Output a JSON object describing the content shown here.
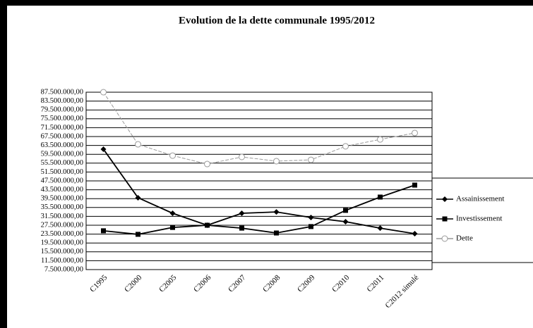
{
  "chart_data": {
    "type": "line",
    "title": "Evolution de la dette communale 1995/2012",
    "categories": [
      "C1995",
      "C2000",
      "C2005",
      "C2006",
      "C2007",
      "C2008",
      "C2009",
      "C2010",
      "C2011",
      "C2012 simulé"
    ],
    "series": [
      {
        "name": "Assainissement",
        "color": "#000000",
        "marker": "diamond",
        "values": [
          61800000,
          39900000,
          32900000,
          27500000,
          32900000,
          33500000,
          31000000,
          29100000,
          26200000,
          23700000
        ]
      },
      {
        "name": "Investissement",
        "color": "#000000",
        "marker": "square",
        "values": [
          25000000,
          23400000,
          26500000,
          27500000,
          26200000,
          24000000,
          26900000,
          34200000,
          40200000,
          45600000
        ]
      },
      {
        "name": "Dette",
        "color": "#9a9a9a",
        "marker": "circle",
        "values": [
          87500000,
          64000000,
          58900000,
          55100000,
          58300000,
          56400000,
          57000000,
          63100000,
          66200000,
          69100000
        ]
      }
    ],
    "ylim": [
      7500000,
      87500000
    ],
    "yticks": [
      {
        "value": 7500000,
        "label": "7.500.000,00"
      },
      {
        "value": 11500000,
        "label": "11.500.000,00"
      },
      {
        "value": 15500000,
        "label": "15.500.000,00"
      },
      {
        "value": 19500000,
        "label": "19.500.000,00"
      },
      {
        "value": 23500000,
        "label": "23.500.000,00"
      },
      {
        "value": 27500000,
        "label": "27.500.000,00"
      },
      {
        "value": 31500000,
        "label": "31.500.000,00"
      },
      {
        "value": 35500000,
        "label": "35.500.000,00"
      },
      {
        "value": 39500000,
        "label": "39.500.000,00"
      },
      {
        "value": 43500000,
        "label": "43.500.000,00"
      },
      {
        "value": 47500000,
        "label": "47.500.000,00"
      },
      {
        "value": 51500000,
        "label": "51.500.000,00"
      },
      {
        "value": 55500000,
        "label": "55.500.000,00"
      },
      {
        "value": 59500000,
        "label": "59.500.000,00"
      },
      {
        "value": 63500000,
        "label": "63.500.000,00"
      },
      {
        "value": 67500000,
        "label": "67.500.000,00"
      },
      {
        "value": 71500000,
        "label": "71.500.000,00"
      },
      {
        "value": 75500000,
        "label": "75.500.000,00"
      },
      {
        "value": 79500000,
        "label": "79.500.000,00"
      },
      {
        "value": 83500000,
        "label": "83.500.000,00"
      },
      {
        "value": 87500000,
        "label": "87.500.000,00"
      }
    ],
    "grid": true,
    "legend": "right"
  }
}
